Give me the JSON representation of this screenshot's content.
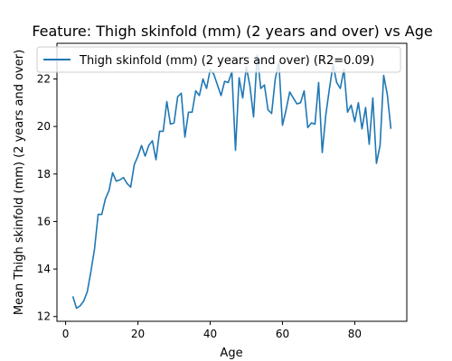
{
  "chart_data": {
    "type": "line",
    "title": "Feature: Thigh skinfold (mm) (2 years and over) vs Age",
    "xlabel": "Age",
    "ylabel": "Mean Thigh skinfold (mm) (2 years and over)",
    "xlim": [
      -2.4,
      94.4
    ],
    "ylim": [
      11.8,
      23.5
    ],
    "xticks": [
      0,
      20,
      40,
      60,
      80
    ],
    "yticks": [
      12,
      14,
      16,
      18,
      20,
      22
    ],
    "grid": false,
    "legend_position": "top",
    "colors": {
      "series": "#1f77b4",
      "axes": "#000000",
      "background": "#ffffff"
    },
    "series": [
      {
        "name": "Thigh skinfold (mm) (2 years and over) (R2=0.09)",
        "x": [
          2,
          3,
          4,
          5,
          6,
          7,
          8,
          9,
          10,
          11,
          12,
          13,
          14,
          15,
          16,
          17,
          18,
          19,
          20,
          21,
          22,
          23,
          24,
          25,
          26,
          27,
          28,
          29,
          30,
          31,
          32,
          33,
          34,
          35,
          36,
          37,
          38,
          39,
          40,
          41,
          42,
          43,
          44,
          45,
          46,
          47,
          48,
          49,
          50,
          51,
          52,
          53,
          54,
          55,
          56,
          57,
          58,
          59,
          60,
          61,
          62,
          63,
          64,
          65,
          66,
          67,
          68,
          69,
          70,
          71,
          72,
          73,
          74,
          75,
          76,
          77,
          78,
          79,
          80,
          81,
          82,
          83,
          84,
          85,
          86,
          87,
          88,
          89,
          90
        ],
        "y": [
          12.85,
          12.35,
          12.45,
          12.65,
          13.05,
          13.9,
          14.85,
          16.3,
          16.3,
          16.95,
          17.3,
          18.05,
          17.7,
          17.75,
          17.85,
          17.6,
          17.45,
          18.4,
          18.75,
          19.2,
          18.75,
          19.2,
          19.4,
          18.6,
          19.8,
          19.8,
          21.05,
          20.1,
          20.15,
          21.25,
          21.4,
          19.55,
          20.6,
          20.6,
          21.5,
          21.3,
          22.0,
          21.6,
          22.4,
          22.2,
          21.75,
          21.3,
          21.9,
          21.85,
          22.3,
          19.0,
          22.05,
          21.2,
          22.5,
          21.7,
          20.4,
          23.0,
          21.6,
          21.75,
          20.7,
          20.55,
          22.0,
          22.7,
          20.05,
          20.7,
          21.45,
          21.2,
          20.95,
          21.0,
          21.5,
          19.95,
          20.15,
          20.1,
          21.85,
          18.9,
          20.5,
          21.6,
          22.6,
          21.85,
          21.6,
          22.4,
          20.6,
          20.9,
          20.2,
          21.0,
          19.9,
          20.8,
          19.25,
          21.2,
          18.45,
          19.2,
          22.15,
          21.35,
          19.9
        ]
      }
    ]
  }
}
